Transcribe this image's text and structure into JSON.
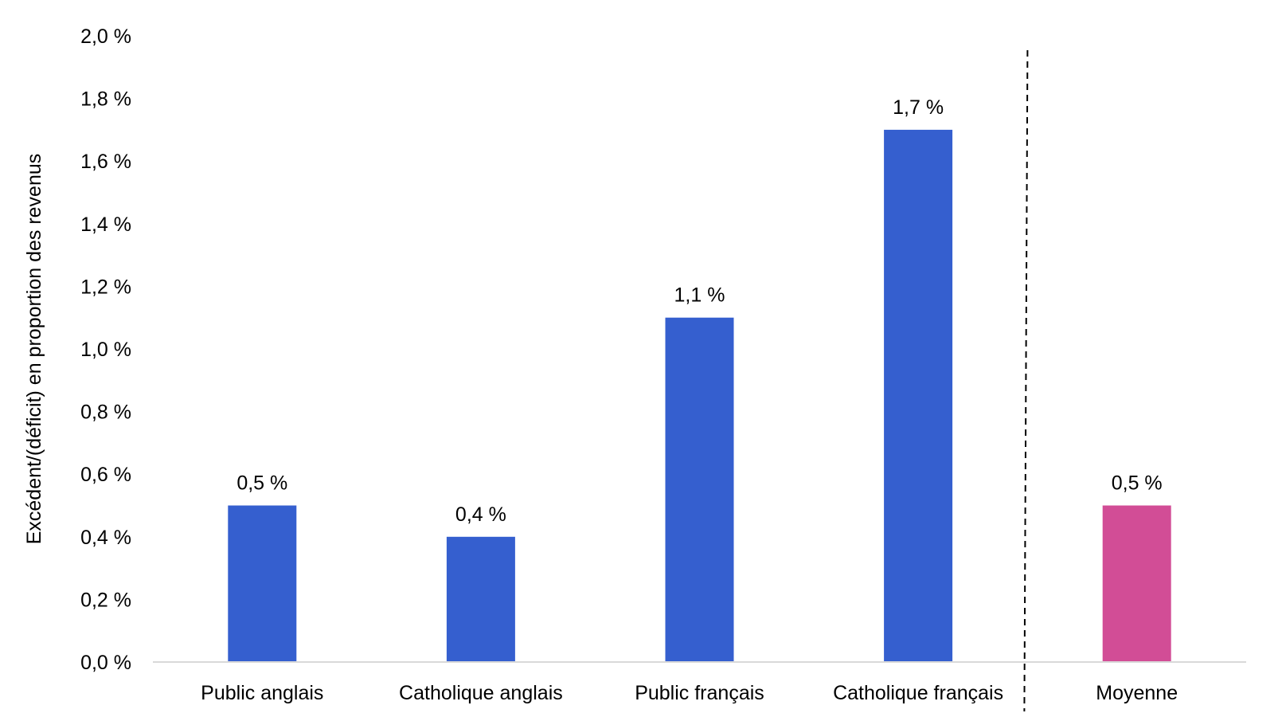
{
  "chart_data": {
    "type": "bar",
    "categories": [
      "Public anglais",
      "Catholique anglais",
      "Public français",
      "Catholique français",
      "Moyenne"
    ],
    "values": [
      0.5,
      0.4,
      1.1,
      1.7,
      0.5
    ],
    "data_labels": [
      "0,5 %",
      "0,4 %",
      "1,1 %",
      "1,7 %",
      "0,5 %"
    ],
    "bar_colors": [
      "#355fcf",
      "#355fcf",
      "#355fcf",
      "#355fcf",
      "#d24d96"
    ],
    "ylabel": "Excédent/(déficit) en proportion des revenus",
    "ylim": [
      0,
      2.0
    ],
    "yticks": [
      0,
      0.2,
      0.4,
      0.6,
      0.8,
      1.0,
      1.2,
      1.4,
      1.6,
      1.8,
      2.0
    ],
    "ytick_labels": [
      "0,0 %",
      "0,2 %",
      "0,4 %",
      "0,6 %",
      "0,8 %",
      "1,0 %",
      "1,2 %",
      "1,4 %",
      "1,6 %",
      "1,8 %",
      "2,0 %"
    ],
    "grid": false,
    "legend": "none",
    "separator": "dashed line between 'Catholique français' and 'Moyenne'"
  }
}
